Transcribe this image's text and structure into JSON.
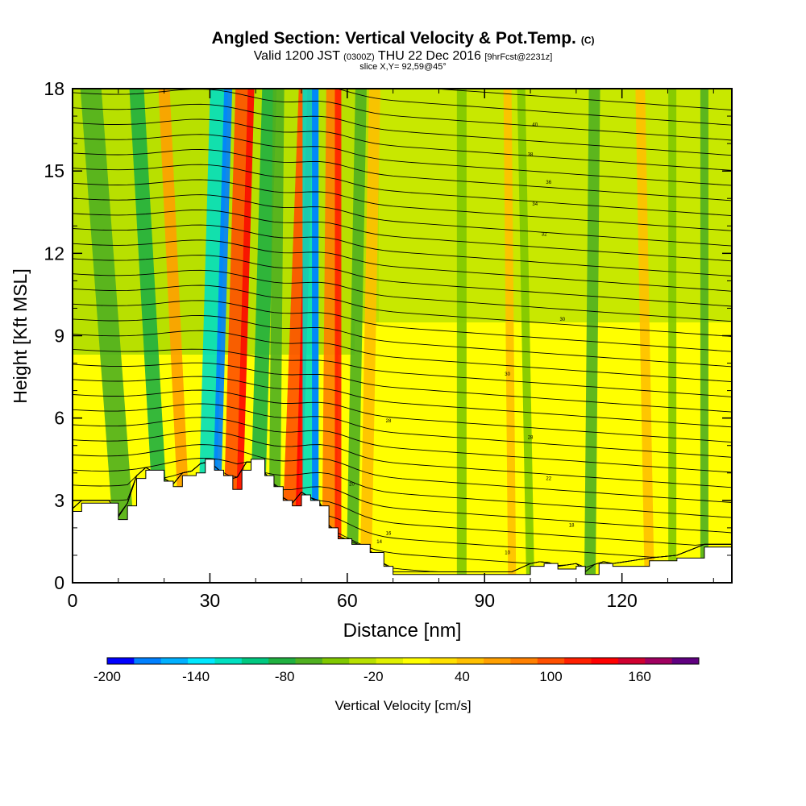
{
  "title": {
    "main": "Angled Section: Vertical Velocity & Pot.Temp.",
    "main_suffix": "(C)",
    "valid_prefix": "Valid 1200 JST",
    "valid_utc": "(0300Z)",
    "valid_date": "THU 22 Dec 2016",
    "valid_fcst": "[9hrFcst@2231z]",
    "slice": "slice X,Y= 92,59@45°"
  },
  "chart_data": {
    "type": "heatmap",
    "xlabel": "Distance [nm]",
    "ylabel": "Height [Kft MSL]",
    "xlim": [
      0,
      144
    ],
    "ylim": [
      0,
      18
    ],
    "xticks": [
      0,
      30,
      60,
      90,
      120
    ],
    "yticks": [
      0,
      3,
      6,
      9,
      12,
      15,
      18
    ],
    "terrain_kft": [
      [
        0,
        2.6
      ],
      [
        2,
        2.9
      ],
      [
        8,
        2.9
      ],
      [
        10,
        2.3
      ],
      [
        12,
        2.8
      ],
      [
        14,
        3.8
      ],
      [
        16,
        4.1
      ],
      [
        20,
        3.7
      ],
      [
        22,
        3.5
      ],
      [
        24,
        3.9
      ],
      [
        27,
        4.0
      ],
      [
        29,
        4.5
      ],
      [
        31,
        4.1
      ],
      [
        33,
        3.9
      ],
      [
        35,
        3.4
      ],
      [
        37,
        4.1
      ],
      [
        39,
        4.5
      ],
      [
        42,
        3.9
      ],
      [
        44,
        3.5
      ],
      [
        46,
        3.0
      ],
      [
        48,
        2.8
      ],
      [
        50,
        3.2
      ],
      [
        52,
        3.0
      ],
      [
        54,
        2.8
      ],
      [
        56,
        2.0
      ],
      [
        58,
        1.6
      ],
      [
        61,
        1.4
      ],
      [
        65,
        1.1
      ],
      [
        68,
        0.6
      ],
      [
        70,
        0.3
      ],
      [
        86,
        0.3
      ],
      [
        96,
        0.3
      ],
      [
        100,
        0.6
      ],
      [
        103,
        0.7
      ],
      [
        106,
        0.5
      ],
      [
        110,
        0.6
      ],
      [
        112,
        0.3
      ],
      [
        115,
        0.7
      ],
      [
        118,
        0.6
      ],
      [
        126,
        0.8
      ],
      [
        132,
        0.9
      ],
      [
        138,
        1.3
      ],
      [
        144,
        1.3
      ]
    ],
    "theta_contours": [
      {
        "label": "10",
        "x": 95,
        "y": 1.1
      },
      {
        "label": "14",
        "x": 67,
        "y": 1.5
      },
      {
        "label": "16",
        "x": 69,
        "y": 1.8
      },
      {
        "label": "18",
        "x": 109,
        "y": 2.1
      },
      {
        "label": "20",
        "x": 61,
        "y": 3.6
      },
      {
        "label": "22",
        "x": 104,
        "y": 3.8
      },
      {
        "label": "28",
        "x": 69,
        "y": 5.9
      },
      {
        "label": "28",
        "x": 100,
        "y": 5.3
      },
      {
        "label": "30",
        "x": 95,
        "y": 7.6
      },
      {
        "label": "30",
        "x": 107,
        "y": 9.6
      },
      {
        "label": "32",
        "x": 103,
        "y": 12.7
      },
      {
        "label": "34",
        "x": 101,
        "y": 13.8
      },
      {
        "label": "36",
        "x": 104,
        "y": 14.6
      },
      {
        "label": "38",
        "x": 100,
        "y": 15.6
      },
      {
        "label": "40",
        "x": 101,
        "y": 16.7
      }
    ],
    "colorbar": {
      "label": "Vertical Velocity [cm/s]",
      "min": -200,
      "max": 200,
      "tick_labels": [
        "-200",
        "-140",
        "-80",
        "-20",
        "40",
        "100",
        "160"
      ],
      "colors": [
        "#0000ff",
        "#0080ff",
        "#00b0ff",
        "#00e8ff",
        "#00e0c0",
        "#00c880",
        "#20b040",
        "#50b020",
        "#80c800",
        "#b8e000",
        "#e0f000",
        "#ffff00",
        "#ffe000",
        "#ffc000",
        "#ffa000",
        "#ff8000",
        "#ff5000",
        "#ff2000",
        "#ff0000",
        "#d00030",
        "#a00060",
        "#600080"
      ]
    }
  }
}
